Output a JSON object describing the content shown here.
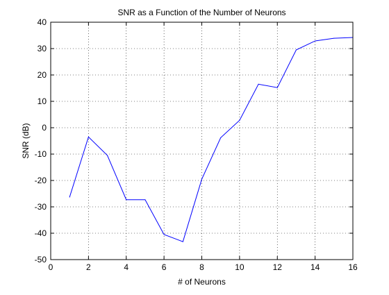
{
  "chart_data": {
    "type": "line",
    "title": "SNR as a Function of the Number of Neurons",
    "xlabel": "# of Neurons",
    "ylabel": "SNR (dB)",
    "xlim": [
      0,
      16
    ],
    "ylim": [
      -50,
      40
    ],
    "xticks": [
      0,
      2,
      4,
      6,
      8,
      10,
      12,
      14,
      16
    ],
    "yticks": [
      -50,
      -40,
      -30,
      -20,
      -10,
      0,
      10,
      20,
      30,
      40
    ],
    "grid": true,
    "line_color": "#0000ff",
    "series": [
      {
        "x": [
          1,
          2,
          3,
          4,
          5,
          6,
          7,
          8,
          9,
          10,
          11,
          12,
          13,
          14,
          15,
          16
        ],
        "values": [
          -26.3,
          -3.5,
          -10.5,
          -27.3,
          -27.3,
          -40.5,
          -43.2,
          -19.5,
          -3.8,
          2.8,
          16.5,
          15.2,
          29.5,
          32.9,
          33.9,
          34.2
        ]
      }
    ]
  }
}
